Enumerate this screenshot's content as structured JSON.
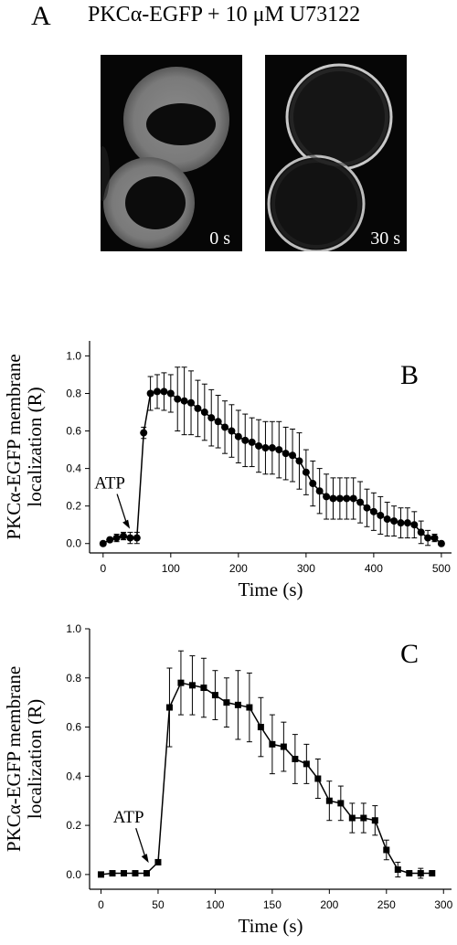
{
  "panel_a": {
    "letter": "A",
    "title": "PKCα-EGFP + 10 μM U73122",
    "images": [
      {
        "label": "0 s",
        "state": "cytosolic"
      },
      {
        "label": "30 s",
        "state": "membrane"
      }
    ]
  },
  "chart_data": [
    {
      "type": "scatter",
      "panel": "B",
      "marker": "circle",
      "xlabel": "Time (s)",
      "ylabel": "PKCα-EGFP membrane localization (R)",
      "ylabel_lines": [
        "PKCα-EGFP membrane",
        "localization (R)"
      ],
      "xlim": [
        -20,
        515
      ],
      "ylim": [
        -0.05,
        1.08
      ],
      "xticks": [
        0,
        100,
        200,
        300,
        400,
        500
      ],
      "yticks": [
        0.0,
        0.2,
        0.4,
        0.6,
        0.8,
        1.0
      ],
      "xtick_labels": [
        "0",
        "100",
        "200",
        "300",
        "400",
        "500"
      ],
      "ytick_labels": [
        "0.0",
        "0.2",
        "0.4",
        "0.6",
        "0.8",
        "1.0"
      ],
      "annotation": {
        "text": "ATP",
        "x": 45,
        "y": 0.03
      },
      "x": [
        0,
        10,
        20,
        30,
        40,
        50,
        60,
        70,
        80,
        90,
        100,
        110,
        120,
        130,
        140,
        150,
        160,
        170,
        180,
        190,
        200,
        210,
        220,
        230,
        240,
        250,
        260,
        270,
        280,
        290,
        300,
        310,
        320,
        330,
        340,
        350,
        360,
        370,
        380,
        390,
        400,
        410,
        420,
        430,
        440,
        450,
        460,
        470,
        480,
        490,
        500
      ],
      "y": [
        0.0,
        0.02,
        0.03,
        0.04,
        0.03,
        0.03,
        0.59,
        0.8,
        0.81,
        0.81,
        0.8,
        0.77,
        0.76,
        0.75,
        0.72,
        0.7,
        0.67,
        0.65,
        0.62,
        0.6,
        0.57,
        0.55,
        0.54,
        0.52,
        0.51,
        0.51,
        0.5,
        0.48,
        0.47,
        0.44,
        0.38,
        0.32,
        0.28,
        0.25,
        0.24,
        0.24,
        0.24,
        0.24,
        0.22,
        0.19,
        0.17,
        0.15,
        0.13,
        0.12,
        0.11,
        0.11,
        0.1,
        0.06,
        0.03,
        0.03,
        0.0
      ],
      "err": [
        0,
        0.01,
        0.02,
        0.02,
        0.03,
        0.03,
        0.03,
        0.09,
        0.09,
        0.1,
        0.1,
        0.17,
        0.18,
        0.17,
        0.15,
        0.15,
        0.15,
        0.14,
        0.14,
        0.14,
        0.14,
        0.14,
        0.13,
        0.14,
        0.14,
        0.14,
        0.15,
        0.14,
        0.14,
        0.15,
        0.12,
        0.12,
        0.12,
        0.12,
        0.11,
        0.11,
        0.11,
        0.11,
        0.11,
        0.1,
        0.1,
        0.1,
        0.09,
        0.08,
        0.08,
        0.08,
        0.07,
        0.06,
        0.04,
        0.02,
        0
      ]
    },
    {
      "type": "scatter",
      "panel": "C",
      "marker": "square",
      "xlabel": "Time (s)",
      "ylabel": "PKCα-EGFP membrane localization (R)",
      "ylabel_lines": [
        "PKCα-EGFP membrane",
        "localization (R)"
      ],
      "xlim": [
        -10,
        307
      ],
      "ylim": [
        -0.06,
        1.0
      ],
      "xticks": [
        0,
        50,
        100,
        150,
        200,
        250,
        300
      ],
      "yticks": [
        0.0,
        0.2,
        0.4,
        0.6,
        0.8,
        1.0
      ],
      "xtick_labels": [
        "0",
        "50",
        "100",
        "150",
        "200",
        "250",
        "300"
      ],
      "ytick_labels": [
        "0.0",
        "0.2",
        "0.4",
        "0.6",
        "0.8",
        "1.0"
      ],
      "annotation": {
        "text": "ATP",
        "x": 45,
        "y": 0.01
      },
      "x": [
        0,
        10,
        20,
        30,
        40,
        50,
        60,
        70,
        80,
        90,
        100,
        110,
        120,
        130,
        140,
        150,
        160,
        170,
        180,
        190,
        200,
        210,
        220,
        230,
        240,
        250,
        260,
        270,
        280,
        290
      ],
      "y": [
        0.0,
        0.005,
        0.005,
        0.005,
        0.005,
        0.05,
        0.68,
        0.78,
        0.77,
        0.76,
        0.73,
        0.7,
        0.69,
        0.68,
        0.6,
        0.53,
        0.52,
        0.47,
        0.45,
        0.39,
        0.3,
        0.29,
        0.23,
        0.23,
        0.22,
        0.1,
        0.02,
        0.005,
        0.005,
        0.005
      ],
      "err": [
        0,
        0,
        0,
        0,
        0,
        0,
        0.16,
        0.13,
        0.12,
        0.12,
        0.1,
        0.1,
        0.14,
        0.14,
        0.12,
        0.12,
        0.1,
        0.1,
        0.08,
        0.08,
        0.08,
        0.07,
        0.06,
        0.06,
        0.06,
        0.04,
        0.03,
        0.01,
        0.02,
        0.01
      ]
    }
  ]
}
